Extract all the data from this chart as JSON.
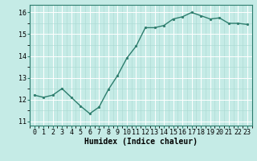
{
  "x": [
    0,
    1,
    2,
    3,
    4,
    5,
    6,
    7,
    8,
    9,
    10,
    11,
    12,
    13,
    14,
    15,
    16,
    17,
    18,
    19,
    20,
    21,
    22,
    23
  ],
  "y": [
    12.2,
    12.1,
    12.2,
    12.5,
    12.1,
    11.7,
    11.35,
    11.65,
    12.45,
    13.1,
    13.9,
    14.45,
    15.3,
    15.3,
    15.4,
    15.7,
    15.8,
    16.0,
    15.85,
    15.7,
    15.75,
    15.5,
    15.5,
    15.45
  ],
  "line_color": "#2d7d6d",
  "marker": "o",
  "markersize": 2.0,
  "linewidth": 1.0,
  "background_color": "#c5ebe6",
  "grid_color": "#aad8d2",
  "xlabel": "Humidex (Indice chaleur)",
  "xlabel_fontsize": 7,
  "xlim": [
    -0.5,
    23.5
  ],
  "ylim": [
    10.8,
    16.35
  ],
  "yticks": [
    11,
    12,
    13,
    14,
    15,
    16
  ],
  "xticks": [
    0,
    1,
    2,
    3,
    4,
    5,
    6,
    7,
    8,
    9,
    10,
    11,
    12,
    13,
    14,
    15,
    16,
    17,
    18,
    19,
    20,
    21,
    22,
    23
  ],
  "tick_fontsize": 6,
  "spine_color": "#2d7d6d"
}
